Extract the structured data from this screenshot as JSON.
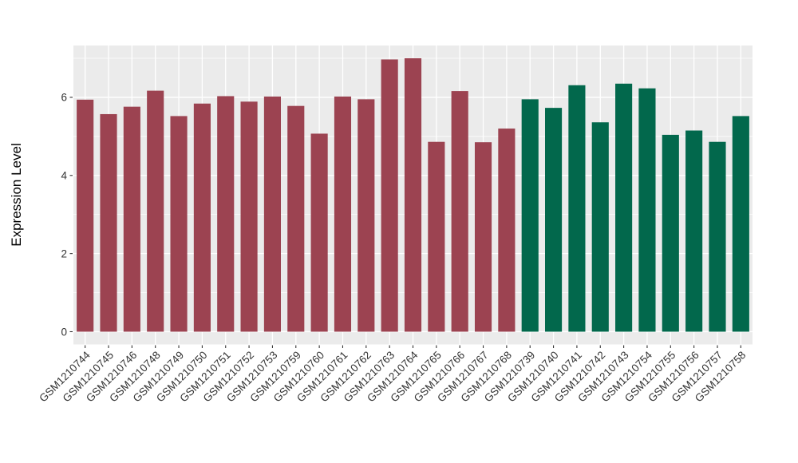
{
  "chart_data": {
    "type": "bar",
    "title": "",
    "ylabel": "Expression Level",
    "xlabel": "",
    "legend": "none",
    "axes": {
      "y_ticks": [
        0,
        2,
        4,
        6
      ],
      "y_minor": [
        1,
        3,
        5,
        7
      ],
      "ylim": [
        0,
        7.33
      ],
      "grid": "on"
    },
    "style": {
      "panel_bg": "#EBEBEB",
      "grid_color": "#FFFFFF",
      "tick_color": "#333333",
      "tick_text_color": "#333333",
      "outer_bg": "#FFFFFF"
    },
    "group_colors": {
      "group1": "#9C4351",
      "group2": "#02684C"
    },
    "samples": [
      {
        "id": "GSM1210744",
        "value": 5.94,
        "group": "group1"
      },
      {
        "id": "GSM1210745",
        "value": 5.57,
        "group": "group1"
      },
      {
        "id": "GSM1210746",
        "value": 5.76,
        "group": "group1"
      },
      {
        "id": "GSM1210748",
        "value": 6.17,
        "group": "group1"
      },
      {
        "id": "GSM1210749",
        "value": 5.52,
        "group": "group1"
      },
      {
        "id": "GSM1210750",
        "value": 5.84,
        "group": "group1"
      },
      {
        "id": "GSM1210751",
        "value": 6.03,
        "group": "group1"
      },
      {
        "id": "GSM1210752",
        "value": 5.89,
        "group": "group1"
      },
      {
        "id": "GSM1210753",
        "value": 6.02,
        "group": "group1"
      },
      {
        "id": "GSM1210759",
        "value": 5.78,
        "group": "group1"
      },
      {
        "id": "GSM1210760",
        "value": 5.07,
        "group": "group1"
      },
      {
        "id": "GSM1210761",
        "value": 6.02,
        "group": "group1"
      },
      {
        "id": "GSM1210762",
        "value": 5.95,
        "group": "group1"
      },
      {
        "id": "GSM1210763",
        "value": 6.97,
        "group": "group1"
      },
      {
        "id": "GSM1210764",
        "value": 7.0,
        "group": "group1"
      },
      {
        "id": "GSM1210765",
        "value": 4.86,
        "group": "group1"
      },
      {
        "id": "GSM1210766",
        "value": 6.16,
        "group": "group1"
      },
      {
        "id": "GSM1210767",
        "value": 4.85,
        "group": "group1"
      },
      {
        "id": "GSM1210768",
        "value": 5.2,
        "group": "group1"
      },
      {
        "id": "GSM1210739",
        "value": 5.95,
        "group": "group2"
      },
      {
        "id": "GSM1210740",
        "value": 5.73,
        "group": "group2"
      },
      {
        "id": "GSM1210741",
        "value": 6.31,
        "group": "group2"
      },
      {
        "id": "GSM1210742",
        "value": 5.36,
        "group": "group2"
      },
      {
        "id": "GSM1210743",
        "value": 6.35,
        "group": "group2"
      },
      {
        "id": "GSM1210754",
        "value": 6.23,
        "group": "group2"
      },
      {
        "id": "GSM1210755",
        "value": 5.04,
        "group": "group2"
      },
      {
        "id": "GSM1210756",
        "value": 5.15,
        "group": "group2"
      },
      {
        "id": "GSM1210757",
        "value": 4.86,
        "group": "group2"
      },
      {
        "id": "GSM1210758",
        "value": 5.52,
        "group": "group2"
      }
    ]
  }
}
